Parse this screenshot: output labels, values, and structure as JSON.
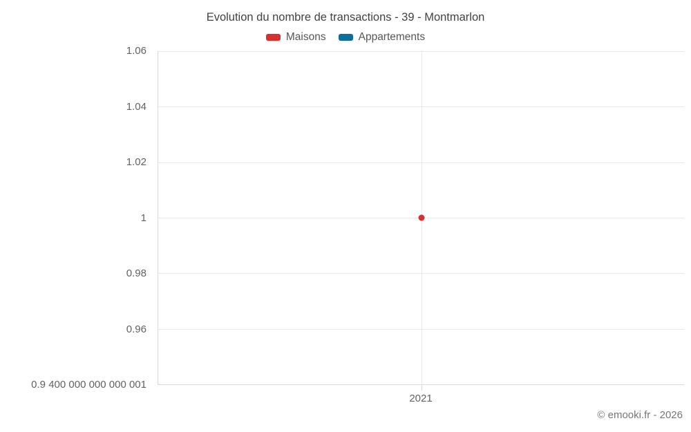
{
  "chart_data": {
    "type": "line",
    "title": "Evolution du nombre de transactions - 39 - Montmarlon",
    "categories": [
      "2021"
    ],
    "series": [
      {
        "name": "Maisons",
        "color": "#d7302e",
        "points": [
          {
            "x": "2021",
            "y": 1
          }
        ]
      },
      {
        "name": "Appartements",
        "color": "#0e6e9d",
        "points": []
      }
    ],
    "ylim": [
      0.9400000000000001,
      1.06
    ],
    "y_ticks": [
      {
        "value": 1.06,
        "label": "1.06"
      },
      {
        "value": 1.04,
        "label": "1.04"
      },
      {
        "value": 1.02,
        "label": "1.02"
      },
      {
        "value": 1,
        "label": "1"
      },
      {
        "value": 0.98,
        "label": "0.98"
      },
      {
        "value": 0.96,
        "label": "0.96"
      },
      {
        "value": 0.9400000000000001,
        "label": "0.9 400 000 000 000 001"
      }
    ],
    "x_ticks": [
      "2021"
    ],
    "grid": true,
    "legend_position": "top",
    "xlabel": "",
    "ylabel": ""
  },
  "footer": {
    "credit": "© emooki.fr - 2026"
  }
}
